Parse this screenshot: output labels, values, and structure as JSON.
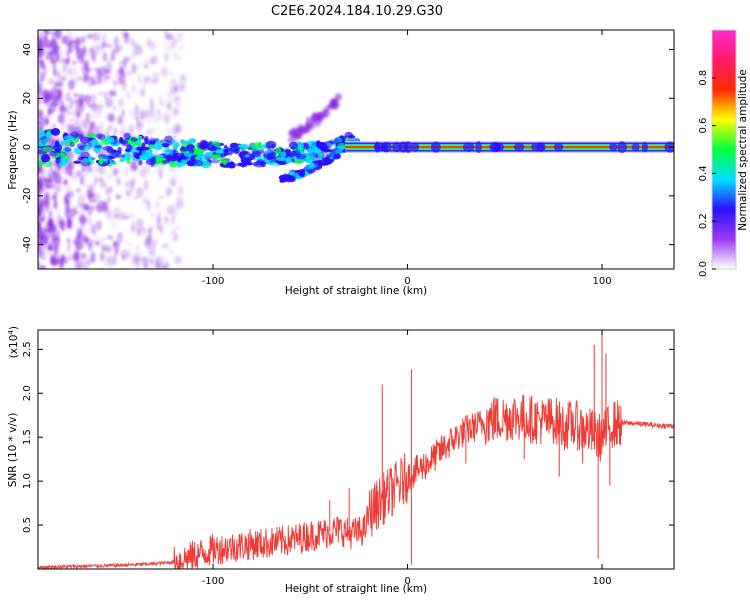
{
  "figure": {
    "title": "C2E6.2024.184.10.29.G30"
  },
  "chart_data": [
    {
      "type": "heatmap",
      "title": "C2E6.2024.184.10.29.G30",
      "xlabel": "Height of straight line (km)",
      "ylabel": "Frequency (Hz)",
      "xlim": [
        -190,
        137
      ],
      "ylim": [
        -50,
        48
      ],
      "xticks": [
        -100,
        0,
        100
      ],
      "xtick_labels": [
        "-100",
        "0",
        "100"
      ],
      "yticks": [
        40,
        20,
        0,
        -20,
        -40
      ],
      "ytick_labels": [
        "40",
        "20",
        "0",
        "-20",
        "-40"
      ],
      "grid": false,
      "colorbar": {
        "label": "Normalized spectral amplitude",
        "range": [
          0,
          1
        ],
        "ticks": [
          0.0,
          0.2,
          0.4,
          0.6,
          0.8
        ],
        "tick_labels": [
          "0.0",
          "0.2",
          "0.4",
          "0.6",
          "0.8"
        ],
        "colormap": [
          "#ffffff",
          "#9b3cf0",
          "#2a10ff",
          "#00e0ff",
          "#00ff3c",
          "#ffff00",
          "#ff2a00",
          "#ff1a6a",
          "#ff2ad4"
        ]
      },
      "ridge": [
        {
          "x": -190,
          "y": 0
        },
        {
          "x": -120,
          "y": -2
        },
        {
          "x": -90,
          "y": -3
        },
        {
          "x": -60,
          "y": -3
        },
        {
          "x": -40,
          "y": -1
        },
        {
          "x": -30,
          "y": 2
        },
        {
          "x": -20,
          "y": 0
        },
        {
          "x": 0,
          "y": 0
        },
        {
          "x": 137,
          "y": 0
        }
      ],
      "secondary_ridge": [
        {
          "x": -65,
          "y": -13
        },
        {
          "x": -55,
          "y": -11
        },
        {
          "x": -45,
          "y": -7
        },
        {
          "x": -35,
          "y": -2
        }
      ],
      "upper_branch": [
        {
          "x": -60,
          "y": 4
        },
        {
          "x": -45,
          "y": 12
        },
        {
          "x": -35,
          "y": 20
        }
      ],
      "colors": {
        "noise": "#8a2be2",
        "low": "#2a10ff",
        "mid": "#00e0ff",
        "midhigh": "#00ff3c",
        "high": "#ff2a00",
        "line_core": "#ffa500"
      }
    },
    {
      "type": "line",
      "xlabel": "Height of straight line (km)",
      "ylabel": "SNR (10 * v/v)",
      "scale_label": "(x10",
      "scale_exponent": "4",
      "scale_close": ")",
      "xlim": [
        -190,
        137
      ],
      "ylim": [
        0,
        2.72
      ],
      "xticks": [
        -100,
        0,
        100
      ],
      "xtick_labels": [
        "-100",
        "0",
        "100"
      ],
      "yticks": [
        0.5,
        1.0,
        1.5,
        2.0,
        2.5
      ],
      "ytick_labels": [
        "0.5",
        "1.0",
        "1.5",
        "2.0",
        "2.5"
      ],
      "grid": false,
      "series": [
        {
          "color": "#ef3b36",
          "x": [
            -190,
            -170,
            -150,
            -130,
            -120,
            -110,
            -100,
            -90,
            -80,
            -70,
            -60,
            -50,
            -40,
            -35,
            -30,
            -25,
            -22,
            -20,
            -15,
            -10,
            -5,
            0,
            5,
            10,
            15,
            20,
            25,
            30,
            35,
            40,
            45,
            50,
            55,
            60,
            65,
            70,
            75,
            80,
            85,
            90,
            95,
            98,
            100,
            102,
            105,
            110,
            115,
            120,
            125,
            130,
            137
          ],
          "y": [
            0.02,
            0.03,
            0.04,
            0.06,
            0.08,
            0.15,
            0.22,
            0.25,
            0.28,
            0.3,
            0.33,
            0.38,
            0.42,
            0.45,
            0.4,
            0.42,
            0.45,
            0.62,
            0.75,
            0.85,
            0.95,
            1.05,
            1.12,
            1.2,
            1.3,
            1.4,
            1.5,
            1.58,
            1.62,
            1.68,
            1.7,
            1.72,
            1.74,
            1.72,
            1.7,
            1.68,
            1.7,
            1.62,
            1.65,
            1.6,
            1.55,
            1.5,
            1.5,
            1.55,
            1.65,
            1.66,
            1.66,
            1.65,
            1.64,
            1.63,
            1.63
          ]
        }
      ],
      "spikes": [
        {
          "x": -40,
          "y": 0.78
        },
        {
          "x": -30,
          "y": 0.92
        },
        {
          "x": -13,
          "y": 2.1
        },
        {
          "x": -8,
          "y": 0.6
        },
        {
          "x": 2,
          "y": 2.27
        },
        {
          "x": 2,
          "y": 0.05
        },
        {
          "x": 30,
          "y": 1.2
        },
        {
          "x": 45,
          "y": 1.95
        },
        {
          "x": 60,
          "y": 1.25
        },
        {
          "x": 78,
          "y": 1.05
        },
        {
          "x": 90,
          "y": 1.2
        },
        {
          "x": 96,
          "y": 2.55
        },
        {
          "x": 98,
          "y": 0.12
        },
        {
          "x": 100,
          "y": 2.72
        },
        {
          "x": 102,
          "y": 2.45
        },
        {
          "x": 104,
          "y": 0.95
        }
      ]
    }
  ]
}
